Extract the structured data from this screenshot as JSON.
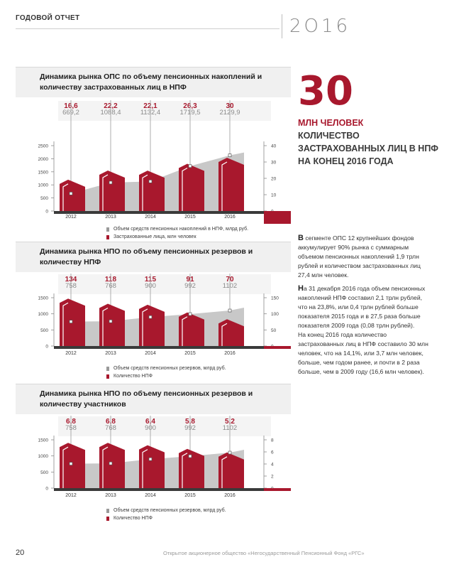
{
  "header": {
    "section_label": "ГОДОВОЙ ОТЧЕТ",
    "year": "2О16"
  },
  "highlight": {
    "number": "30",
    "unit": "МЛН ЧЕЛОВЕК",
    "caption": "КОЛИЧЕСТВО ЗАСТРАХОВАННЫХ ЛИЦ В НПФ НА КОНЕЦ 2016 ГОДА"
  },
  "text": {
    "para1_first": "В",
    "para1_rest": " сегменте ОПС 12 крупнейших фондов аккумулирует 90% рынка с суммарным объемом пенсионных накоплений 1,9 трлн рублей и количеством застрахованных лиц 27,4 млн человек.",
    "para2_first": "Н",
    "para2_rest": "а 31 декабря 2016 года объем пенсионных накоплений НПФ составил 2,1 трлн рублей, что на 23,8%, или 0,4 трлн рублей больше показателя 2015 года и в 27,5 раза больше показателя 2009 года (0,08 трлн рублей).",
    "para3": "На конец 2016 года количество застрахованных лиц в НПФ составило 30 млн человек, что на 14,1%, или 3,7 млн человек, больше, чем годом ранее, и почти в 2 раза больше, чем в 2009 году (16,6 млн человек)."
  },
  "footer": {
    "page_number": "20",
    "company": "Открытое акционерное общество «Негосударственный Пенсионный Фонд «РГС»"
  },
  "colors": {
    "accent": "#a8182d",
    "grey_area": "#c8c8c8",
    "dark_band": "#3a3a3a"
  },
  "chart_data": [
    {
      "type": "bar",
      "title": "Динамика рынка ОПС по объему пенсионных накоплений и количеству застрахованных лиц в НПФ",
      "categories": [
        "2012",
        "2013",
        "2014",
        "2015",
        "2016"
      ],
      "series": [
        {
          "name": "Объем средств пенсионных накоплений в НПФ, млрд руб.",
          "kind": "area",
          "axis": "left",
          "values": [
            669.2,
            1088.4,
            1132.4,
            1719.5,
            2129.9
          ],
          "labels": [
            "669,2",
            "1088,4",
            "1132,4",
            "1719,5",
            "2129,9"
          ]
        },
        {
          "name": "Застрахованные лица, млн человек",
          "kind": "bar",
          "axis": "right",
          "values": [
            16.6,
            22.2,
            22.1,
            26.3,
            30
          ],
          "labels": [
            "16,6",
            "22,2",
            "22,1",
            "26,3",
            "30"
          ]
        }
      ],
      "y_left": {
        "ticks": [
          "0",
          "500",
          "1000",
          "1500",
          "2000",
          "2500"
        ],
        "range": [
          0,
          2500
        ]
      },
      "y_right": {
        "ticks": [
          "0",
          "10",
          "20",
          "30",
          "40"
        ],
        "range": [
          0,
          40
        ]
      }
    },
    {
      "type": "bar",
      "title": "Динамика рынка НПО по объему пенсионных резервов и количеству НПФ",
      "categories": [
        "2012",
        "2013",
        "2014",
        "2015",
        "2016"
      ],
      "series": [
        {
          "name": "Объем средств пенсионных резервов, млрд руб.",
          "kind": "area",
          "axis": "left",
          "values": [
            758,
            768,
            900,
            992,
            1102
          ],
          "labels": [
            "758",
            "768",
            "900",
            "992",
            "1102"
          ]
        },
        {
          "name": "Количество НПФ",
          "kind": "bar",
          "axis": "right",
          "values": [
            134,
            118,
            115,
            91,
            70
          ],
          "labels": [
            "134",
            "118",
            "115",
            "91",
            "70"
          ]
        }
      ],
      "y_left": {
        "ticks": [
          "0",
          "500",
          "1000",
          "1500"
        ],
        "range": [
          0,
          1500
        ]
      },
      "y_right": {
        "ticks": [
          "0",
          "50",
          "100",
          "150"
        ],
        "range": [
          0,
          150
        ]
      }
    },
    {
      "type": "bar",
      "title": "Динамика рынка НПО по объему пенсионных резервов и количеству участников",
      "categories": [
        "2012",
        "2013",
        "2014",
        "2015",
        "2016"
      ],
      "series": [
        {
          "name": "Объем средств пенсионных резервов, млрд руб.",
          "kind": "area",
          "axis": "left",
          "values": [
            758,
            768,
            900,
            992,
            1102
          ],
          "labels": [
            "758",
            "768",
            "900",
            "992",
            "1102"
          ]
        },
        {
          "name": "Количество НПФ",
          "kind": "bar",
          "axis": "right",
          "values": [
            6.8,
            6.8,
            6.4,
            5.8,
            5.2
          ],
          "labels": [
            "6,8",
            "6,8",
            "6,4",
            "5,8",
            "5,2"
          ]
        }
      ],
      "y_left": {
        "ticks": [
          "0",
          "500",
          "1000",
          "1500"
        ],
        "range": [
          0,
          1500
        ]
      },
      "y_right": {
        "ticks": [
          "0",
          "2",
          "4",
          "6",
          "8"
        ],
        "range": [
          0,
          8
        ]
      }
    }
  ]
}
